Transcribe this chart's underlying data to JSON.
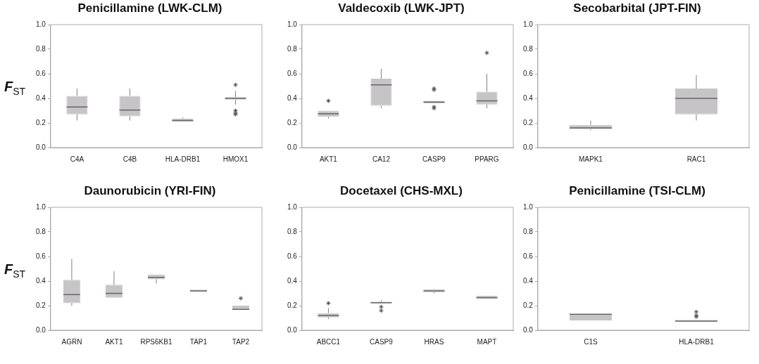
{
  "chart_data": [
    {
      "type": "box",
      "title": "Penicillamine (LWK-CLM)",
      "ylabel": "F$_{ST}$",
      "categories": [
        "C4A",
        "C4B",
        "HLA-DRB1",
        "HMOX1"
      ],
      "ylim": [
        0,
        1
      ],
      "yticks": [
        {
          "value": 0,
          "label": "0.0"
        },
        {
          "value": 0.2,
          "label": "0.2"
        },
        {
          "value": 0.4,
          "label": "0.4"
        },
        {
          "value": 0.6,
          "label": "0.6"
        },
        {
          "value": 0.8,
          "label": "0.8"
        },
        {
          "value": 1,
          "label": "1.0"
        }
      ],
      "grid": false,
      "legend": false,
      "marker": "star",
      "series": [
        {
          "color": "#c6c4c6",
          "boxes": [
            {
              "low": 0.22,
              "q1": 0.27,
              "median": 0.33,
              "q3": 0.42,
              "high": 0.48
            },
            {
              "low": 0.22,
              "q1": 0.255,
              "median": 0.305,
              "q3": 0.42,
              "high": 0.48
            },
            {
              "low": 0.21,
              "q1": 0.21,
              "median": 0.22,
              "q3": 0.235,
              "high": 0.245
            },
            {
              "low": 0.35,
              "q1": 0.39,
              "median": 0.4,
              "q3": 0.41,
              "high": 0.46,
              "outliers": [
                0.51,
                0.3,
                0.28,
                0.27
              ]
            }
          ]
        }
      ]
    },
    {
      "type": "box",
      "title": "Valdecoxib (LWK-JPT)",
      "categories": [
        "AKT1",
        "CA12",
        "CASP9",
        "PPARG"
      ],
      "ylim": [
        0,
        1
      ],
      "yticks": [
        {
          "value": 0,
          "label": "0.0"
        },
        {
          "value": 0.2,
          "label": "0.2"
        },
        {
          "value": 0.4,
          "label": "0.4"
        },
        {
          "value": 0.6,
          "label": "0.6"
        },
        {
          "value": 0.8,
          "label": "0.8"
        },
        {
          "value": 1,
          "label": "1.0"
        }
      ],
      "grid": false,
      "legend": false,
      "marker": "star",
      "series": [
        {
          "color": "#c6c4c6",
          "boxes": [
            {
              "low": 0.235,
              "q1": 0.25,
              "median": 0.275,
              "q3": 0.3,
              "high": 0.3,
              "outliers": [
                0.38
              ]
            },
            {
              "low": 0.32,
              "q1": 0.34,
              "median": 0.51,
              "q3": 0.56,
              "high": 0.64
            },
            {
              "low": 0.36,
              "q1": 0.36,
              "median": 0.37,
              "q3": 0.38,
              "high": 0.38,
              "outliers": [
                0.48,
                0.47,
                0.33,
                0.32
              ]
            },
            {
              "low": 0.32,
              "q1": 0.35,
              "median": 0.38,
              "q3": 0.455,
              "high": 0.6,
              "outliers": [
                0.77
              ]
            }
          ]
        }
      ]
    },
    {
      "type": "box",
      "title": "Secobarbital (JPT-FIN)",
      "categories": [
        "MAPK1",
        "RAC1"
      ],
      "ylim": [
        0,
        1
      ],
      "yticks": [
        {
          "value": 0,
          "label": "0.0"
        },
        {
          "value": 0.2,
          "label": "0.2"
        },
        {
          "value": 0.4,
          "label": "0.4"
        },
        {
          "value": 0.6,
          "label": "0.6"
        },
        {
          "value": 0.8,
          "label": "0.8"
        },
        {
          "value": 1,
          "label": "1.0"
        }
      ],
      "grid": false,
      "legend": false,
      "series": [
        {
          "color": "#c6c4c6",
          "boxes": [
            {
              "low": 0.14,
              "q1": 0.15,
              "median": 0.16,
              "q3": 0.185,
              "high": 0.22
            },
            {
              "low": 0.22,
              "q1": 0.27,
              "median": 0.4,
              "q3": 0.48,
              "high": 0.59
            }
          ]
        }
      ]
    },
    {
      "type": "box",
      "title": "Daunorubicin (YRI-FIN)",
      "ylabel": "F$_{ST}$",
      "categories": [
        "AGRN",
        "AKT1",
        "RPS6KB1",
        "TAP1",
        "TAP2"
      ],
      "ylim": [
        0,
        1
      ],
      "yticks": [
        {
          "value": 0,
          "label": "0.0"
        },
        {
          "value": 0.2,
          "label": "0.2"
        },
        {
          "value": 0.4,
          "label": "0.4"
        },
        {
          "value": 0.6,
          "label": "0.6"
        },
        {
          "value": 0.8,
          "label": "0.8"
        },
        {
          "value": 1,
          "label": "1.0"
        }
      ],
      "grid": false,
      "legend": false,
      "marker": "star",
      "series": [
        {
          "color": "#c6c4c6",
          "boxes": [
            {
              "low": 0.2,
              "q1": 0.22,
              "median": 0.29,
              "q3": 0.41,
              "high": 0.58
            },
            {
              "low": 0.265,
              "q1": 0.265,
              "median": 0.3,
              "q3": 0.37,
              "high": 0.48
            },
            {
              "low": 0.38,
              "q1": 0.415,
              "median": 0.43,
              "q3": 0.455,
              "high": 0.455
            },
            {
              "low": 0.315,
              "q1": 0.315,
              "median": 0.32,
              "q3": 0.33,
              "high": 0.33
            },
            {
              "low": 0.17,
              "q1": 0.17,
              "median": 0.17,
              "q3": 0.2,
              "high": 0.2,
              "outliers": [
                0.26
              ]
            }
          ]
        }
      ]
    },
    {
      "type": "box",
      "title": "Docetaxel (CHS-MXL)",
      "categories": [
        "ABCC1",
        "CASP9",
        "HRAS",
        "MAPT"
      ],
      "ylim": [
        0,
        1
      ],
      "yticks": [
        {
          "value": 0,
          "label": "0.0"
        },
        {
          "value": 0.2,
          "label": "0.2"
        },
        {
          "value": 0.4,
          "label": "0.4"
        },
        {
          "value": 0.6,
          "label": "0.6"
        },
        {
          "value": 0.8,
          "label": "0.8"
        },
        {
          "value": 1,
          "label": "1.0"
        }
      ],
      "grid": false,
      "legend": false,
      "marker": "star",
      "series": [
        {
          "color": "#c6c4c6",
          "boxes": [
            {
              "low": 0.09,
              "q1": 0.105,
              "median": 0.12,
              "q3": 0.14,
              "high": 0.18,
              "outliers": [
                0.22
              ]
            },
            {
              "low": 0.215,
              "q1": 0.215,
              "median": 0.225,
              "q3": 0.23,
              "high": 0.245,
              "outliers": [
                0.19,
                0.16
              ]
            },
            {
              "low": 0.3,
              "q1": 0.31,
              "median": 0.32,
              "q3": 0.335,
              "high": 0.335
            },
            {
              "low": 0.255,
              "q1": 0.255,
              "median": 0.265,
              "q3": 0.28,
              "high": 0.28
            }
          ]
        }
      ]
    },
    {
      "type": "box",
      "title": "Penicillamine (TSI-CLM)",
      "categories": [
        "C1S",
        "HLA-DRB1"
      ],
      "ylim": [
        0,
        1
      ],
      "yticks": [
        {
          "value": 0,
          "label": "0.0"
        },
        {
          "value": 0.2,
          "label": "0.2"
        },
        {
          "value": 0.4,
          "label": "0.4"
        },
        {
          "value": 0.6,
          "label": "0.6"
        },
        {
          "value": 0.8,
          "label": "0.8"
        },
        {
          "value": 1,
          "label": "1.0"
        }
      ],
      "grid": false,
      "legend": false,
      "marker": "star",
      "series": [
        {
          "color": "#c6c4c6",
          "boxes": [
            {
              "low": 0.08,
              "q1": 0.08,
              "median": 0.13,
              "q3": 0.135,
              "high": 0.135
            },
            {
              "low": 0.07,
              "q1": 0.07,
              "median": 0.075,
              "q3": 0.085,
              "high": 0.085,
              "outliers": [
                0.15,
                0.12,
                0.11
              ]
            }
          ]
        }
      ]
    }
  ]
}
